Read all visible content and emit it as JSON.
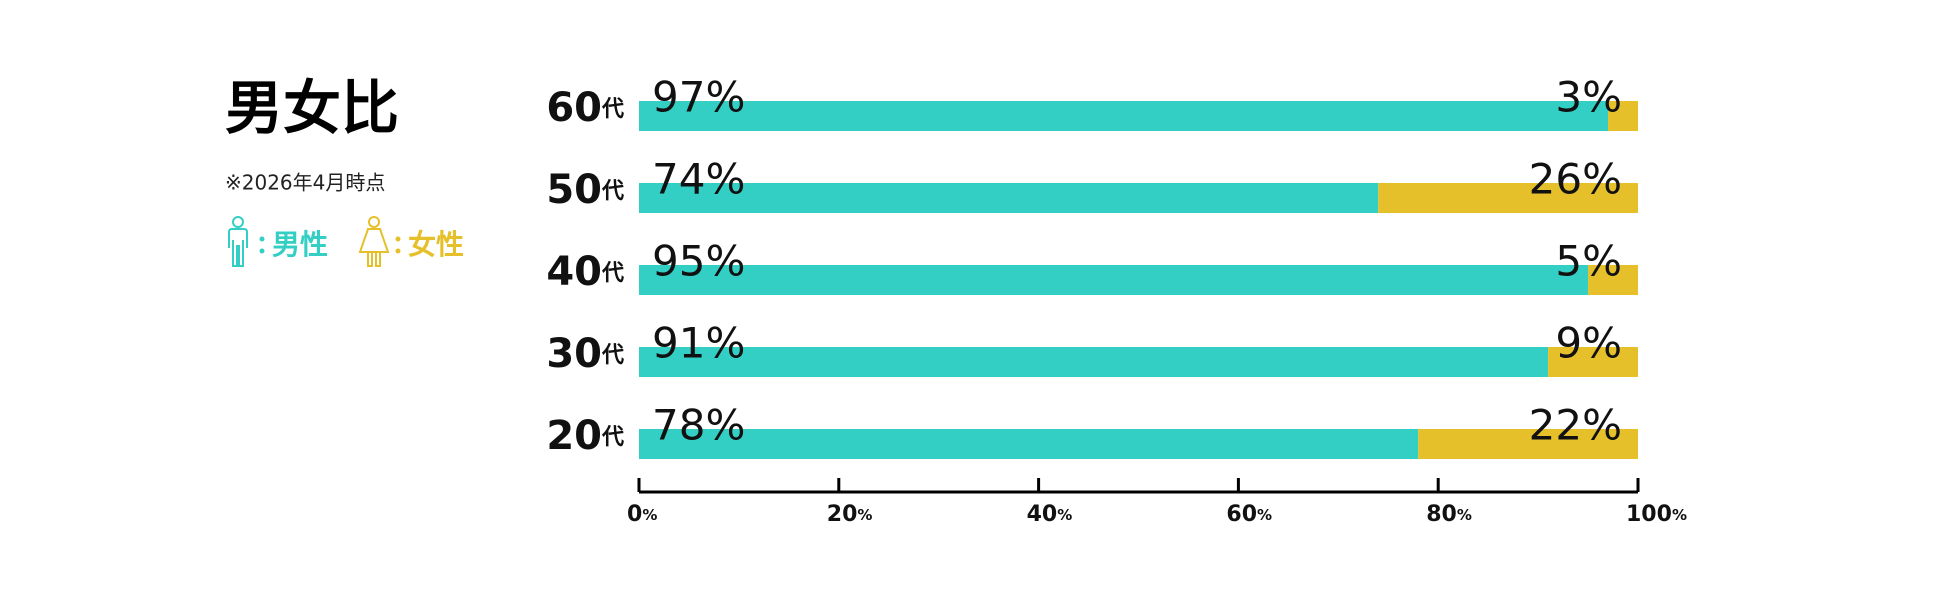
{
  "chart_data": {
    "type": "stacked_barh",
    "title": "男女比",
    "subtitle": "※2026年4月時点",
    "categories": [
      "60代",
      "50代",
      "40代",
      "30代",
      "20代"
    ],
    "series": [
      {
        "name": "男性",
        "color": "#33cfc4",
        "values": [
          97,
          74,
          95,
          91,
          78
        ],
        "value_labels": [
          "97%",
          "74%",
          "95%",
          "91%",
          "78%"
        ]
      },
      {
        "name": "女性",
        "color": "#e5c02a",
        "values": [
          3,
          26,
          5,
          9,
          22
        ],
        "value_labels": [
          "3%",
          "26%",
          "5%",
          "9%",
          "22%"
        ]
      }
    ],
    "xlim": [
      0,
      100
    ],
    "xticks": [
      {
        "value": 0,
        "label": "0%"
      },
      {
        "value": 20,
        "label": "20%"
      },
      {
        "value": 40,
        "label": "40%"
      },
      {
        "value": 60,
        "label": "60%"
      },
      {
        "value": 80,
        "label": "80%"
      },
      {
        "value": 100,
        "label": "100%"
      }
    ]
  }
}
